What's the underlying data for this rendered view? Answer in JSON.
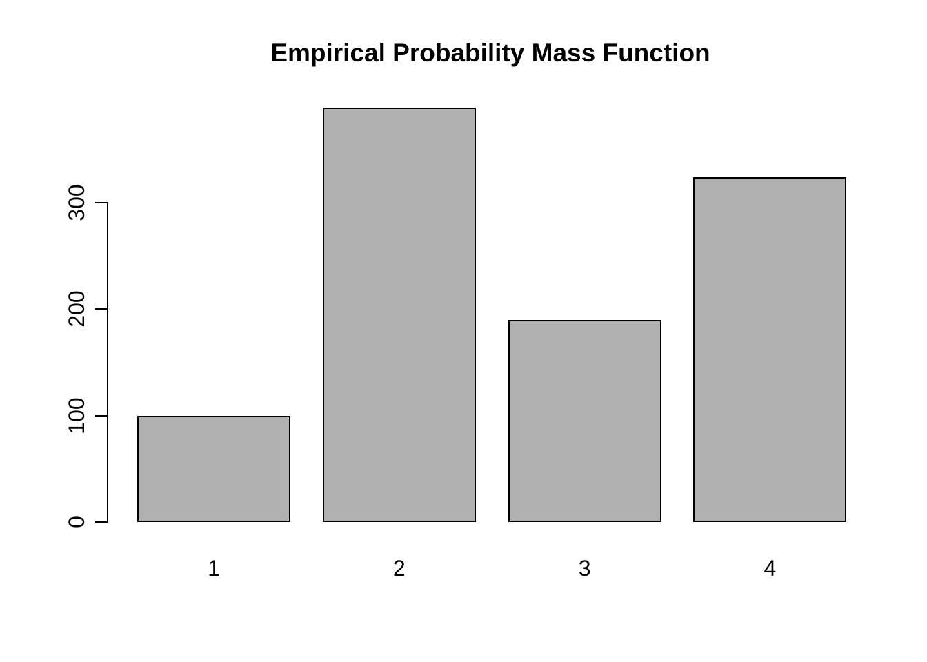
{
  "chart_data": {
    "type": "bar",
    "title": "Empirical Probability Mass Function",
    "categories": [
      "1",
      "2",
      "3",
      "4"
    ],
    "values": [
      100,
      389,
      190,
      324
    ],
    "xlabel": "",
    "ylabel": "",
    "y_ticks": [
      0,
      100,
      200,
      300
    ],
    "ylim": [
      0,
      400
    ],
    "grid": false,
    "legend": "none",
    "colors": {
      "bar_fill": "#b0b0b0",
      "bar_border": "#000000",
      "axis": "#000000",
      "text": "#000000",
      "background": "#ffffff"
    }
  }
}
